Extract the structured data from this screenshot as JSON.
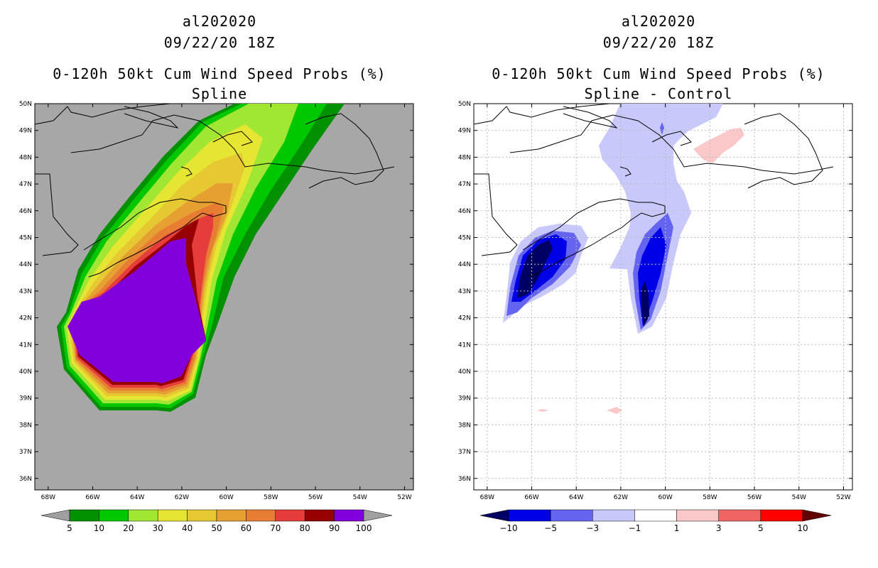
{
  "left_panel": {
    "storm_id": "al202020",
    "datetime": "09/22/20 18Z",
    "product": "0-120h 50kt Cum Wind Speed Probs (%)",
    "subtitle": "Spline",
    "lat_labels": [
      "50N",
      "49N",
      "48N",
      "47N",
      "46N",
      "45N",
      "44N",
      "43N",
      "42N",
      "41N",
      "40N",
      "39N",
      "38N",
      "37N",
      "36N"
    ],
    "lon_labels": [
      "68W",
      "66W",
      "64W",
      "62W",
      "60W",
      "58W",
      "56W",
      "54W",
      "52W"
    ],
    "colorbar": {
      "labels": [
        "5",
        "10",
        "20",
        "30",
        "40",
        "50",
        "60",
        "70",
        "80",
        "90",
        "100"
      ],
      "colors": [
        "#a0a0a0",
        "#009000",
        "#00c800",
        "#a0e632",
        "#e6e632",
        "#e6c832",
        "#e6a032",
        "#e67d32",
        "#e63c3c",
        "#960000",
        "#8200dc",
        "#a0a0a0"
      ]
    }
  },
  "right_panel": {
    "storm_id": "al202020",
    "datetime": "09/22/20 18Z",
    "product": "0-120h 50kt Cum Wind Speed Probs (%)",
    "subtitle": "Spline - Control",
    "lat_labels": [
      "50N",
      "49N",
      "48N",
      "47N",
      "46N",
      "45N",
      "44N",
      "43N",
      "42N",
      "41N",
      "40N",
      "39N",
      "38N",
      "37N",
      "36N"
    ],
    "lon_labels": [
      "68W",
      "66W",
      "64W",
      "62W",
      "60W",
      "58W",
      "56W",
      "54W",
      "52W"
    ],
    "colorbar": {
      "labels": [
        "−10",
        "−5",
        "−3",
        "−1",
        "1",
        "3",
        "5",
        "10"
      ],
      "colors": [
        "#000064",
        "#0000e6",
        "#6464f0",
        "#c8c8fa",
        "#ffffff",
        "#fac8c8",
        "#f06464",
        "#ff0000",
        "#640000"
      ]
    }
  },
  "colors": {
    "land_bg_left": "#a7a7a7",
    "land_bg_right": "#ffffff"
  }
}
